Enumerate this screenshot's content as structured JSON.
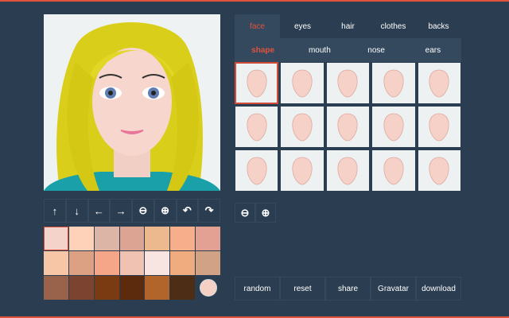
{
  "tabs": [
    {
      "label": "face",
      "active": true
    },
    {
      "label": "eyes"
    },
    {
      "label": "hair"
    },
    {
      "label": "clothes"
    },
    {
      "label": "backs"
    }
  ],
  "subtabs": [
    {
      "label": "shape",
      "active": true
    },
    {
      "label": "mouth"
    },
    {
      "label": "nose"
    },
    {
      "label": "ears"
    }
  ],
  "accent": "#e0533d",
  "background": "#2b3e51",
  "controls": [
    {
      "name": "move-up-button",
      "icon": "arrow-up-icon",
      "glyph": "↑"
    },
    {
      "name": "move-down-button",
      "icon": "arrow-down-icon",
      "glyph": "↓"
    },
    {
      "name": "move-left-button",
      "icon": "arrow-left-icon",
      "glyph": "←"
    },
    {
      "name": "move-right-button",
      "icon": "arrow-right-icon",
      "glyph": "→"
    },
    {
      "name": "zoom-out-button",
      "icon": "zoom-out-icon",
      "glyph": "⊖"
    },
    {
      "name": "zoom-in-button",
      "icon": "zoom-in-icon",
      "glyph": "⊕"
    },
    {
      "name": "rotate-left-button",
      "icon": "rotate-left-icon",
      "glyph": "↶"
    },
    {
      "name": "rotate-right-button",
      "icon": "rotate-right-icon",
      "glyph": "↷"
    }
  ],
  "swatches": [
    "#f4d3cb",
    "#fdd2b8",
    "#dcb5a6",
    "#dca593",
    "#ecb98e",
    "#f7ae8b",
    "#e3a193",
    "#f6c6a6",
    "#dca183",
    "#f5a689",
    "#f0c2b2",
    "#f8e4e0",
    "#f0ac7e",
    "#d2a287",
    "#99624a",
    "#7b4330",
    "#7a3b12",
    "#5c2a0d",
    "#b2652a",
    "#4e2d16"
  ],
  "custom_swatch": "#f5d0c5",
  "selected_swatch": 0,
  "shape_count": 15,
  "selected_shape": 0,
  "skin": "#f6d1c8",
  "zoom_controls": [
    {
      "name": "zoom-out-button",
      "glyph": "⊖"
    },
    {
      "name": "zoom-in-button",
      "glyph": "⊕"
    }
  ],
  "actions": [
    "random",
    "reset",
    "share",
    "Gravatar",
    "download"
  ]
}
